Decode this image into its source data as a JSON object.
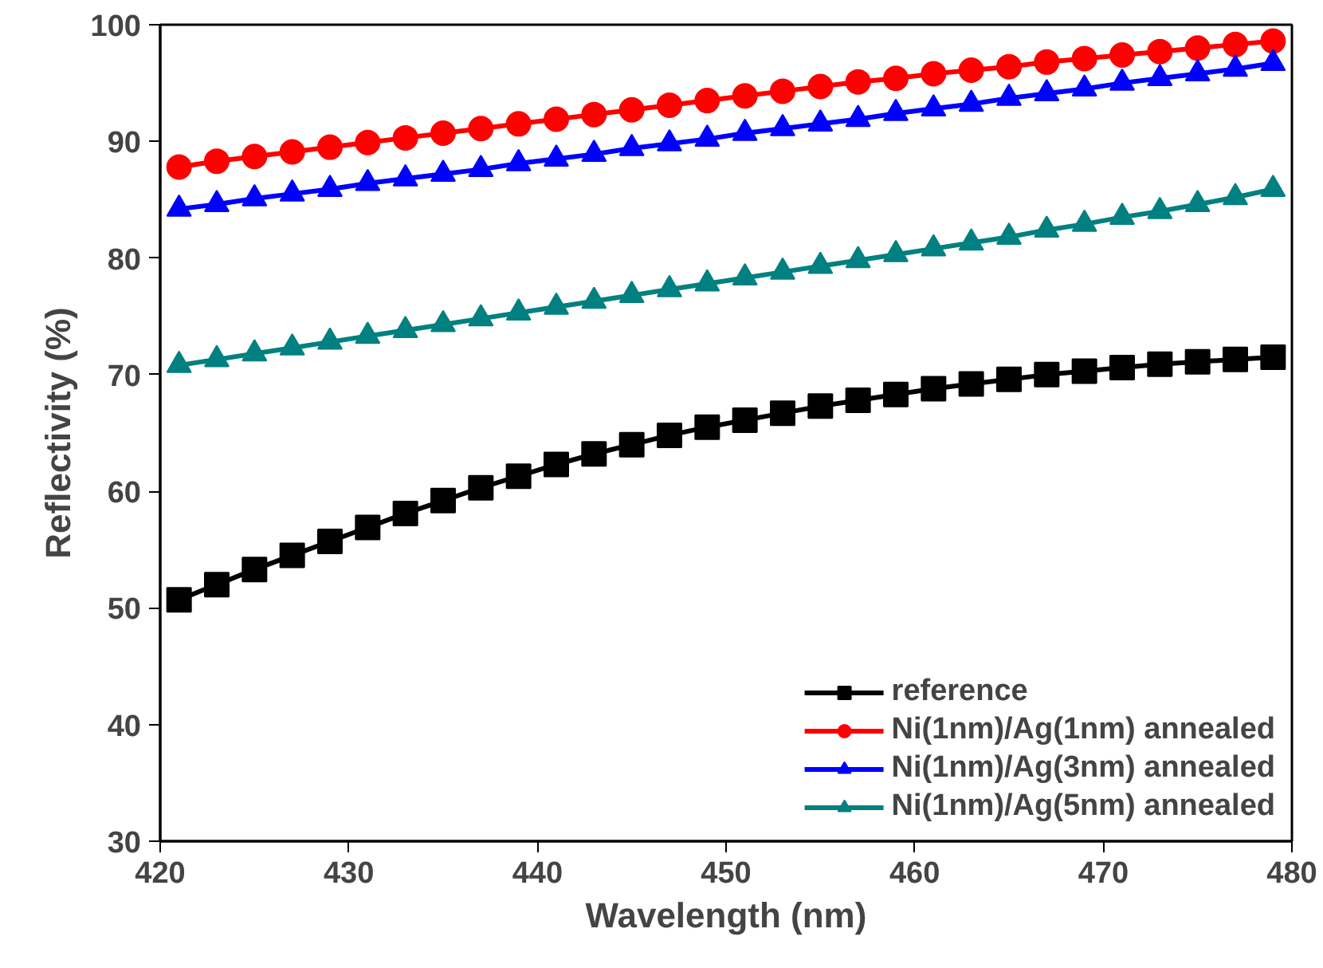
{
  "chart_data": {
    "type": "line",
    "xlabel": "Wavelength (nm)",
    "ylabel": "Reflectivity (%)",
    "x": [
      421,
      423,
      425,
      427,
      429,
      431,
      433,
      435,
      437,
      439,
      441,
      443,
      445,
      447,
      449,
      451,
      453,
      455,
      457,
      459,
      461,
      463,
      465,
      467,
      469,
      471,
      473,
      475,
      477,
      479
    ],
    "series": [
      {
        "name": "reference",
        "color": "#000000",
        "marker": "square",
        "values": [
          50.7,
          52.0,
          53.3,
          54.5,
          55.7,
          56.9,
          58.1,
          59.2,
          60.3,
          61.3,
          62.3,
          63.2,
          64.0,
          64.8,
          65.5,
          66.1,
          66.7,
          67.3,
          67.8,
          68.3,
          68.8,
          69.2,
          69.6,
          70.0,
          70.3,
          70.6,
          70.9,
          71.1,
          71.3,
          71.5
        ]
      },
      {
        "name": "Ni(1nm)/Ag(1nm) annealed",
        "color": "#ff0000",
        "marker": "circle",
        "values": [
          87.8,
          88.3,
          88.7,
          89.1,
          89.5,
          89.9,
          90.3,
          90.7,
          91.1,
          91.5,
          91.9,
          92.3,
          92.7,
          93.1,
          93.5,
          93.9,
          94.3,
          94.7,
          95.1,
          95.4,
          95.8,
          96.1,
          96.4,
          96.8,
          97.1,
          97.4,
          97.7,
          98.0,
          98.3,
          98.6
        ]
      },
      {
        "name": "Ni(1nm)/Ag(3nm) annealed",
        "color": "#0000ff",
        "marker": "triangle",
        "values": [
          84.2,
          84.6,
          85.1,
          85.5,
          85.9,
          86.4,
          86.8,
          87.2,
          87.6,
          88.1,
          88.5,
          88.9,
          89.4,
          89.8,
          90.2,
          90.7,
          91.1,
          91.5,
          91.9,
          92.4,
          92.8,
          93.2,
          93.7,
          94.1,
          94.5,
          95.0,
          95.4,
          95.8,
          96.2,
          96.7
        ]
      },
      {
        "name": "Ni(1nm)/Ag(5nm) annealed",
        "color": "#008080",
        "marker": "triangle",
        "values": [
          70.8,
          71.3,
          71.8,
          72.3,
          72.8,
          73.3,
          73.8,
          74.3,
          74.8,
          75.3,
          75.8,
          76.3,
          76.8,
          77.3,
          77.8,
          78.3,
          78.8,
          79.3,
          79.8,
          80.3,
          80.8,
          81.3,
          81.8,
          82.4,
          82.9,
          83.5,
          84.0,
          84.6,
          85.2,
          85.9
        ]
      }
    ],
    "xlim": [
      420,
      480
    ],
    "xticks": [
      420,
      430,
      440,
      450,
      460,
      470,
      480
    ],
    "ylim": [
      30,
      100
    ],
    "yticks": [
      30,
      40,
      50,
      60,
      70,
      80,
      90,
      100
    ],
    "grid": false,
    "legend": "bottom right",
    "line_style": "solid"
  }
}
